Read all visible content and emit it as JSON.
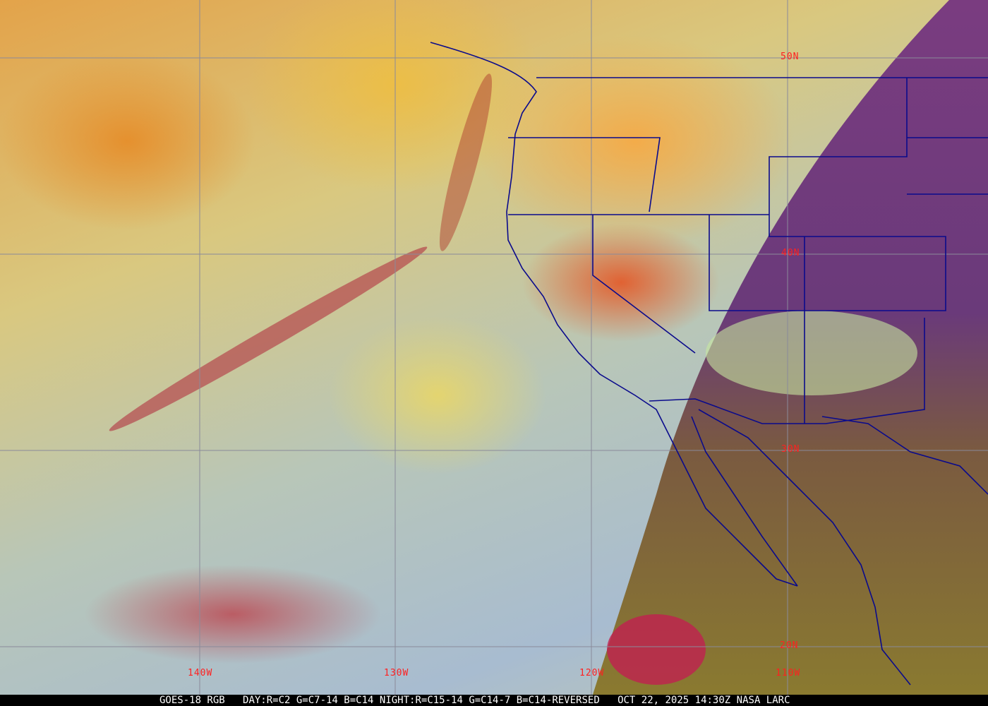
{
  "map": {
    "latitude_labels": [
      "50N",
      "40N",
      "30N",
      "20N"
    ],
    "longitude_labels": [
      "140W",
      "130W",
      "120W",
      "110W"
    ],
    "colors": {
      "grid": "#8a8a9a",
      "borders": "#0a0a8c",
      "labels": "#ff2020",
      "night_side": "#6a3a7a",
      "footer_bg": "#000000"
    }
  },
  "footer": {
    "product": "GOES-18 RGB",
    "day": "DAY:R=C2 G=C7-14 B=C14",
    "night": "NIGHT:R=C15-14 G=C14-7 B=C14-REVERSED",
    "datetime": "OCT 22, 2025 14:30Z",
    "source": "NASA LARC"
  }
}
